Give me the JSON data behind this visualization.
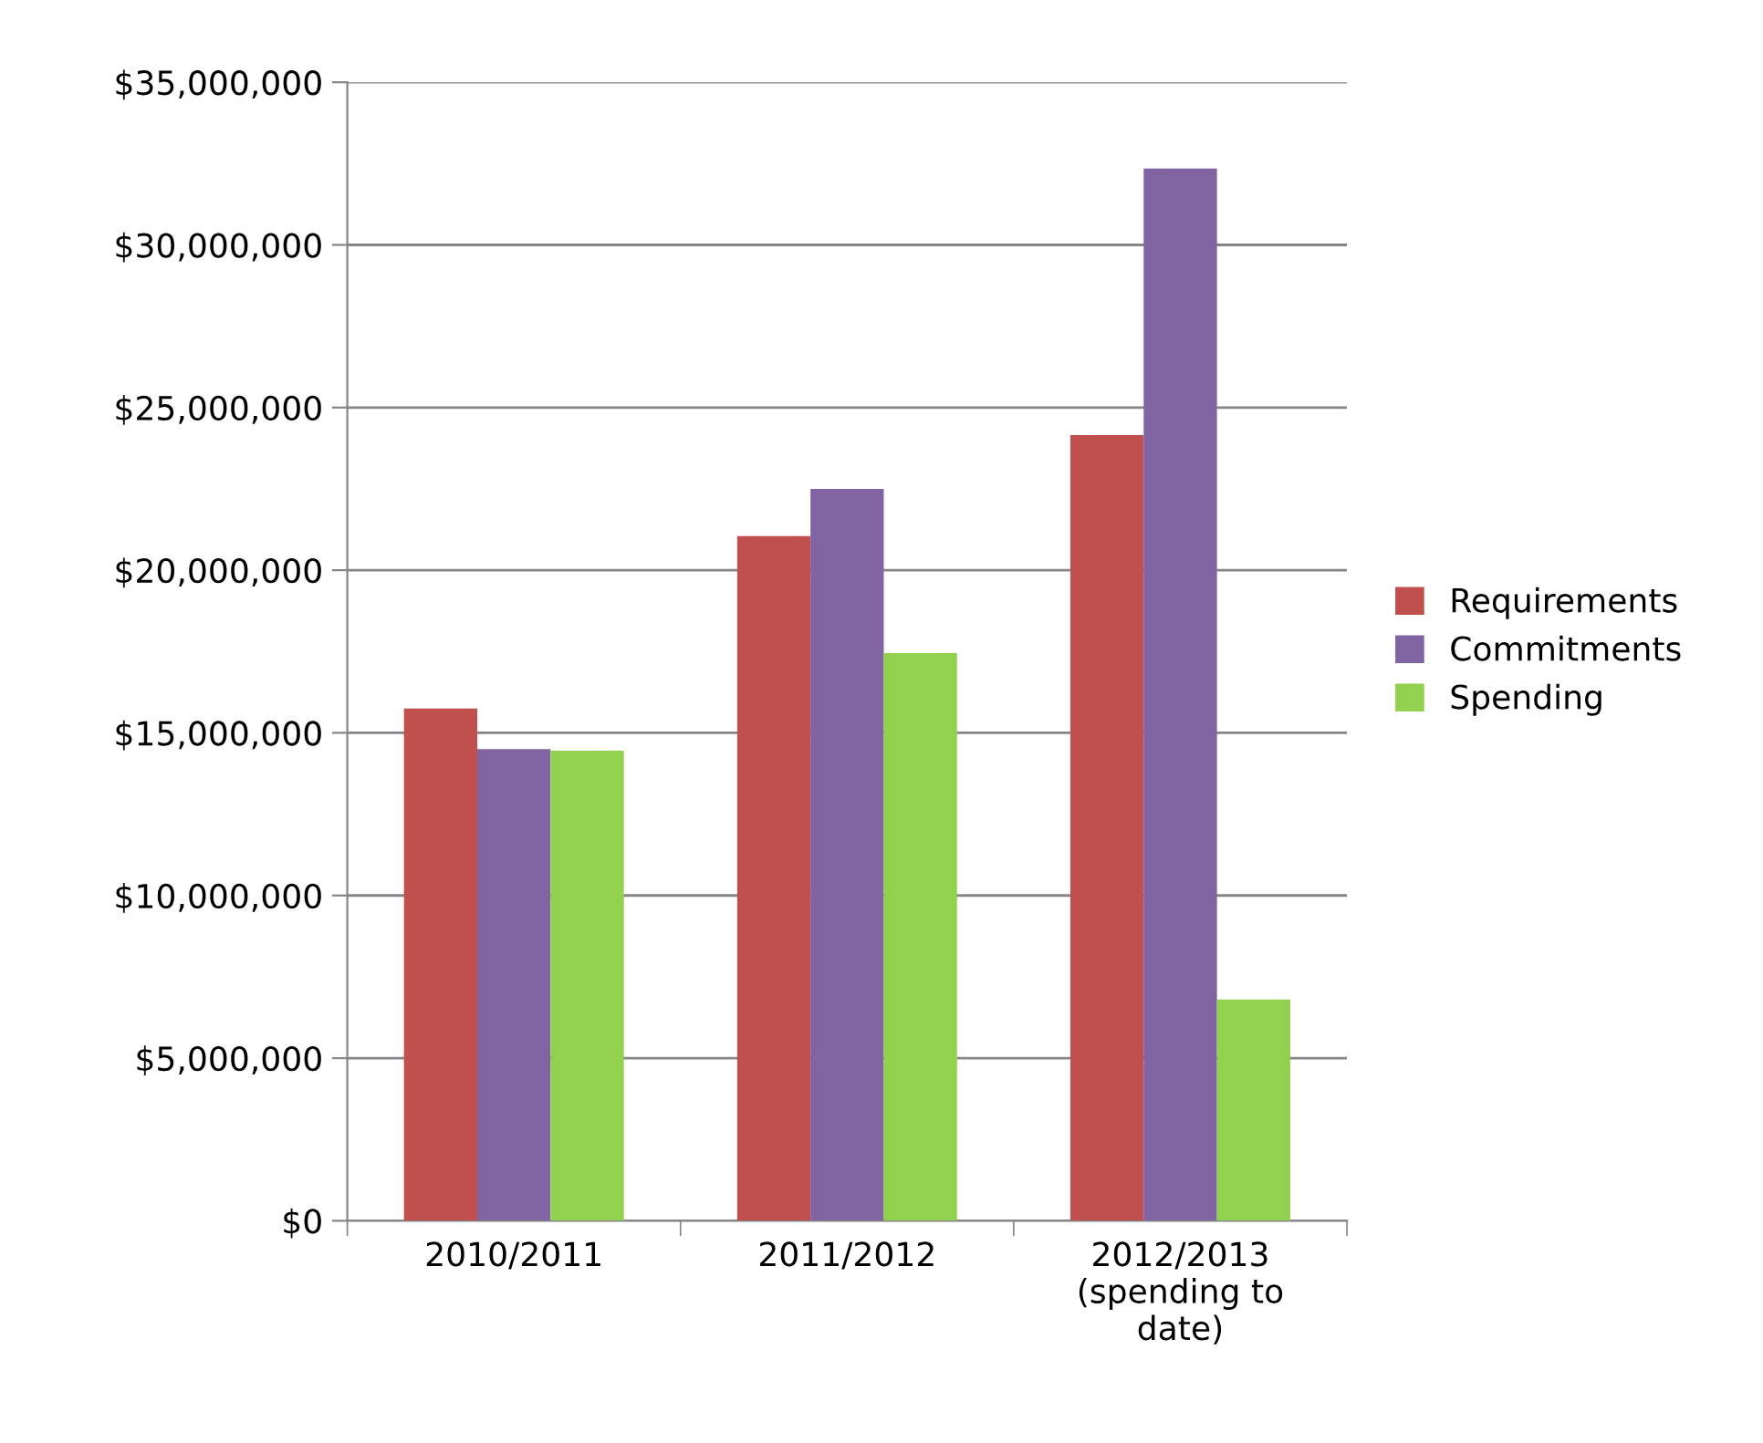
{
  "chart_data": {
    "type": "bar",
    "categories": [
      "2010/2011",
      "2011/2012",
      "2012/2013\n(spending to\ndate)"
    ],
    "series": [
      {
        "name": "Requirements",
        "color": "#c0504d",
        "values": [
          15750000,
          21050000,
          24150000
        ]
      },
      {
        "name": "Commitments",
        "color": "#8064a2",
        "values": [
          14500000,
          22500000,
          32350000
        ]
      },
      {
        "name": "Spending",
        "color": "#92d050",
        "values": [
          14450000,
          17450000,
          6800000
        ]
      }
    ],
    "ylim": [
      0,
      35000000
    ],
    "yticks": [
      {
        "value": 0,
        "label": "$0"
      },
      {
        "value": 5000000,
        "label": "$5,000,000"
      },
      {
        "value": 10000000,
        "label": "$10,000,000"
      },
      {
        "value": 15000000,
        "label": "$15,000,000"
      },
      {
        "value": 20000000,
        "label": "$20,000,000"
      },
      {
        "value": 25000000,
        "label": "$25,000,000"
      },
      {
        "value": 30000000,
        "label": "$30,000,000"
      },
      {
        "value": 35000000,
        "label": "$35,000,000"
      }
    ],
    "grid": "y",
    "legend": "right"
  }
}
